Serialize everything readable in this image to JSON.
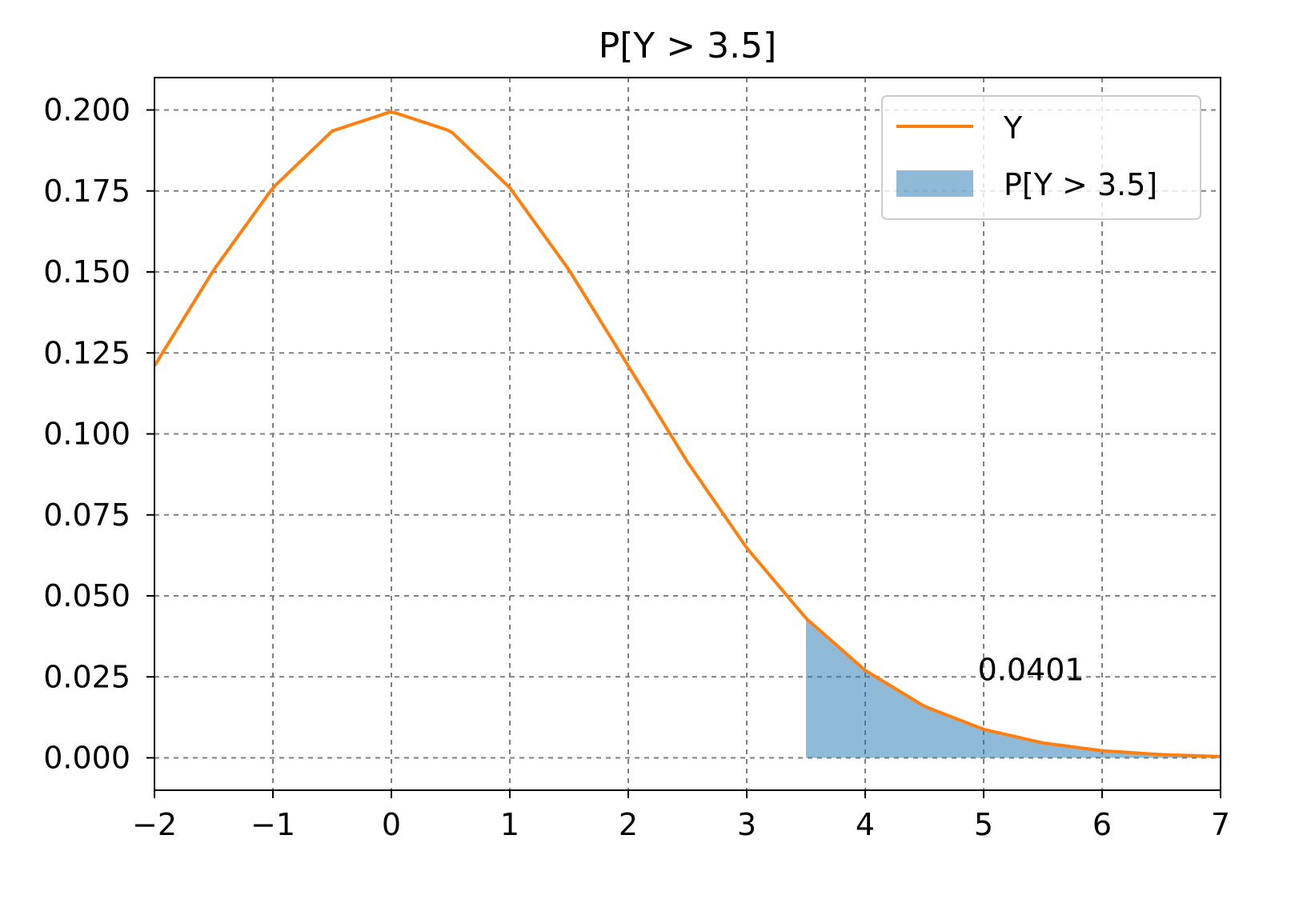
{
  "chart_data": {
    "type": "area",
    "title": "P[Y > 3.5]",
    "xlabel": "",
    "ylabel": "",
    "xlim": [
      -2,
      7
    ],
    "ylim": [
      -0.01,
      0.21
    ],
    "x_ticks": [
      -2,
      -1,
      0,
      1,
      2,
      3,
      4,
      5,
      6,
      7
    ],
    "x_tick_labels": [
      "−2",
      "−1",
      "0",
      "1",
      "2",
      "3",
      "4",
      "5",
      "6",
      "7"
    ],
    "y_ticks": [
      0,
      0.025,
      0.05,
      0.075,
      0.1,
      0.125,
      0.15,
      0.175,
      0.2
    ],
    "y_tick_labels": [
      "0.000",
      "0.025",
      "0.050",
      "0.075",
      "0.100",
      "0.125",
      "0.150",
      "0.175",
      "0.200"
    ],
    "grid": true,
    "legend_position": "top-right",
    "series": [
      {
        "name": "Y",
        "kind": "line",
        "color": "#ff7f0e",
        "x": [
          -2,
          -1.5,
          -1,
          -0.5,
          0,
          0.5,
          1,
          1.5,
          2,
          2.5,
          3,
          3.5,
          4,
          4.5,
          5,
          5.5,
          6,
          6.5,
          7
        ],
        "y": [
          0.121,
          0.1506,
          0.176,
          0.1935,
          0.1995,
          0.1935,
          0.176,
          0.1506,
          0.121,
          0.0913,
          0.0648,
          0.0431,
          0.027,
          0.0159,
          0.0088,
          0.0046,
          0.0022,
          0.001,
          0.0004
        ]
      },
      {
        "name": "P[Y > 3.5]",
        "kind": "area",
        "color": "#1f77b4",
        "opacity": 0.5,
        "x_from": 3.5,
        "x_to": 7
      }
    ],
    "annotations": [
      {
        "text": "0.0401",
        "x": 4.95,
        "y": 0.024
      }
    ]
  }
}
